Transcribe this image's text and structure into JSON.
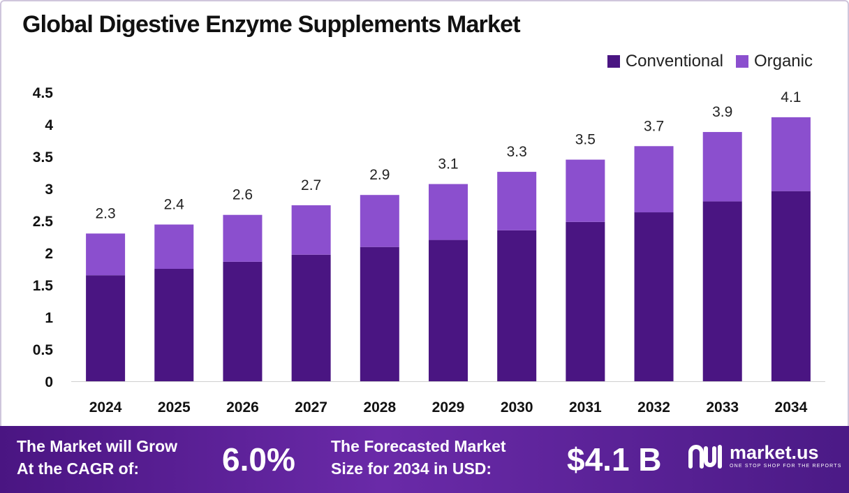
{
  "title": "Global Digestive Enzyme Supplements Market",
  "legend": [
    {
      "label": "Conventional",
      "color": "#4a1582"
    },
    {
      "label": "Organic",
      "color": "#8b4fce"
    }
  ],
  "chart_data": {
    "type": "bar",
    "stacked": true,
    "title": "Global Digestive Enzyme Supplements Market",
    "categories": [
      "2024",
      "2025",
      "2026",
      "2027",
      "2028",
      "2029",
      "2030",
      "2031",
      "2032",
      "2033",
      "2034"
    ],
    "series": [
      {
        "name": "Conventional",
        "color": "#4a1582",
        "values": [
          1.65,
          1.75,
          1.86,
          1.97,
          2.09,
          2.2,
          2.35,
          2.48,
          2.63,
          2.8,
          2.96
        ]
      },
      {
        "name": "Organic",
        "color": "#8b4fce",
        "values": [
          0.65,
          0.69,
          0.73,
          0.77,
          0.81,
          0.87,
          0.91,
          0.97,
          1.03,
          1.08,
          1.15
        ]
      }
    ],
    "total_labels": [
      "2.3",
      "2.4",
      "2.6",
      "2.7",
      "2.9",
      "3.1",
      "3.3",
      "3.5",
      "3.7",
      "3.9",
      "4.1"
    ],
    "y_ticks": [
      "0",
      "0.5",
      "1",
      "1.5",
      "2",
      "2.5",
      "3",
      "3.5",
      "4",
      "4.5"
    ],
    "ylim": [
      0,
      4.5
    ],
    "grid": false,
    "legend_position": "top-right"
  },
  "footer": {
    "cagr_label_line1": "The Market will Grow",
    "cagr_label_line2": "At the CAGR of:",
    "cagr_value": "6.0%",
    "forecast_label_line1": "The Forecasted Market",
    "forecast_label_line2": "Size for 2034 in USD:",
    "forecast_value": "$4.1 B",
    "logo_name": "market.us",
    "logo_tagline": "ONE STOP SHOP FOR THE REPORTS"
  }
}
